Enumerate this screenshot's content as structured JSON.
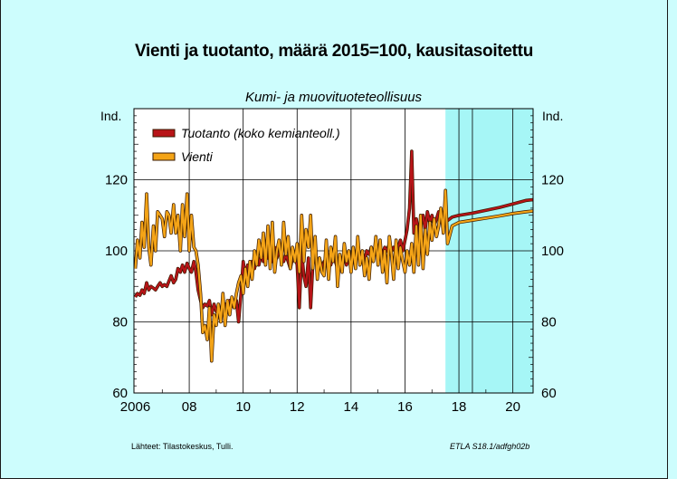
{
  "title": "Vienti ja tuotanto, määrä 2015=100, kausitasoitettu",
  "subtitle": "Kumi- ja muovituoteteollisuus",
  "source": "Lähteet:   Tilastokeskus, Tulli.",
  "code": "ETLA S18.1/adfgh02b",
  "colors": {
    "background": "#cdfdfd",
    "plot_area": "#ffffff",
    "forecast_shade": "#a6f6f6",
    "tuotanto": "#b81418",
    "vienti": "#f4a417"
  },
  "chart_data": {
    "type": "line",
    "title": "Vienti ja tuotanto, määrä 2015=100, kausitasoitettu",
    "subtitle": "Kumi- ja muovituoteteollisuus",
    "ylabel_left": "Ind.",
    "ylabel_right": "Ind.",
    "ylim": [
      60,
      140
    ],
    "xlim": [
      2005.95,
      2020.75
    ],
    "y_ticks": [
      60,
      80,
      100,
      120
    ],
    "x_ticks": [
      {
        "value": 2006,
        "label": "2006"
      },
      {
        "value": 2008,
        "label": "08"
      },
      {
        "value": 2010,
        "label": "10"
      },
      {
        "value": 2012,
        "label": "12"
      },
      {
        "value": 2014,
        "label": "14"
      },
      {
        "value": 2016,
        "label": "16"
      },
      {
        "value": 2018,
        "label": "18"
      },
      {
        "value": 2020,
        "label": "20"
      }
    ],
    "grid": true,
    "legend_position": "top-left",
    "forecast_start": 2017.5,
    "forecast_divider": 2018.5,
    "series": [
      {
        "name": "Tuotanto (koko kemianteoll.)",
        "color": "#b81418",
        "points": [
          [
            2006.0,
            87
          ],
          [
            2006.08,
            88
          ],
          [
            2006.17,
            87.5
          ],
          [
            2006.25,
            89
          ],
          [
            2006.33,
            88
          ],
          [
            2006.42,
            91
          ],
          [
            2006.5,
            89
          ],
          [
            2006.58,
            90
          ],
          [
            2006.67,
            89.5
          ],
          [
            2006.75,
            89
          ],
          [
            2006.83,
            90
          ],
          [
            2006.92,
            91
          ],
          [
            2007.0,
            90
          ],
          [
            2007.08,
            90.5
          ],
          [
            2007.17,
            90
          ],
          [
            2007.25,
            91.5
          ],
          [
            2007.33,
            93
          ],
          [
            2007.42,
            91
          ],
          [
            2007.5,
            92
          ],
          [
            2007.58,
            95
          ],
          [
            2007.67,
            94
          ],
          [
            2007.75,
            96
          ],
          [
            2007.83,
            94
          ],
          [
            2007.92,
            96.5
          ],
          [
            2008.0,
            95
          ],
          [
            2008.08,
            94
          ],
          [
            2008.17,
            97
          ],
          [
            2008.25,
            94
          ],
          [
            2008.33,
            89
          ],
          [
            2008.42,
            86
          ],
          [
            2008.5,
            84
          ],
          [
            2008.58,
            85
          ],
          [
            2008.67,
            84.5
          ],
          [
            2008.75,
            86
          ],
          [
            2008.83,
            82
          ],
          [
            2008.92,
            85
          ],
          [
            2009.0,
            83
          ],
          [
            2009.08,
            82
          ],
          [
            2009.17,
            84
          ],
          [
            2009.25,
            83
          ],
          [
            2009.33,
            85
          ],
          [
            2009.42,
            84
          ],
          [
            2009.5,
            86
          ],
          [
            2009.58,
            85
          ],
          [
            2009.67,
            84
          ],
          [
            2009.75,
            86
          ],
          [
            2009.83,
            80
          ],
          [
            2009.92,
            88
          ],
          [
            2010.0,
            97
          ],
          [
            2010.08,
            93
          ],
          [
            2010.17,
            96
          ],
          [
            2010.25,
            94
          ],
          [
            2010.33,
            97
          ],
          [
            2010.42,
            95
          ],
          [
            2010.5,
            98
          ],
          [
            2010.58,
            96
          ],
          [
            2010.67,
            99
          ],
          [
            2010.75,
            97
          ],
          [
            2010.83,
            100
          ],
          [
            2010.92,
            98
          ],
          [
            2011.0,
            99
          ],
          [
            2011.08,
            97
          ],
          [
            2011.17,
            101
          ],
          [
            2011.25,
            98
          ],
          [
            2011.33,
            100
          ],
          [
            2011.42,
            98
          ],
          [
            2011.5,
            97
          ],
          [
            2011.58,
            99
          ],
          [
            2011.67,
            97
          ],
          [
            2011.75,
            95
          ],
          [
            2011.83,
            98
          ],
          [
            2011.92,
            99
          ],
          [
            2012.0,
            96
          ],
          [
            2012.08,
            84
          ],
          [
            2012.17,
            100
          ],
          [
            2012.25,
            93
          ],
          [
            2012.33,
            90
          ],
          [
            2012.42,
            98
          ],
          [
            2012.5,
            84
          ],
          [
            2012.58,
            96
          ],
          [
            2012.67,
            100
          ],
          [
            2012.75,
            96
          ],
          [
            2012.83,
            98
          ],
          [
            2012.92,
            95
          ],
          [
            2013.0,
            97
          ],
          [
            2013.08,
            96
          ],
          [
            2013.17,
            98
          ],
          [
            2013.25,
            96
          ],
          [
            2013.33,
            99
          ],
          [
            2013.42,
            97
          ],
          [
            2013.5,
            95
          ],
          [
            2013.58,
            98
          ],
          [
            2013.67,
            97
          ],
          [
            2013.75,
            99
          ],
          [
            2013.83,
            96
          ],
          [
            2013.92,
            98
          ],
          [
            2014.0,
            97
          ],
          [
            2014.08,
            99
          ],
          [
            2014.17,
            97
          ],
          [
            2014.25,
            100
          ],
          [
            2014.33,
            98
          ],
          [
            2014.42,
            99
          ],
          [
            2014.5,
            97
          ],
          [
            2014.58,
            100
          ],
          [
            2014.67,
            99
          ],
          [
            2014.75,
            101
          ],
          [
            2014.83,
            99
          ],
          [
            2014.92,
            100
          ],
          [
            2015.0,
            98
          ],
          [
            2015.08,
            100
          ],
          [
            2015.17,
            99
          ],
          [
            2015.25,
            101
          ],
          [
            2015.33,
            100
          ],
          [
            2015.42,
            102
          ],
          [
            2015.5,
            100
          ],
          [
            2015.58,
            101
          ],
          [
            2015.67,
            99
          ],
          [
            2015.75,
            101
          ],
          [
            2015.83,
            103
          ],
          [
            2015.92,
            100
          ],
          [
            2016.0,
            103
          ],
          [
            2016.08,
            106
          ],
          [
            2016.17,
            112
          ],
          [
            2016.25,
            128
          ],
          [
            2016.33,
            105
          ],
          [
            2016.42,
            109
          ],
          [
            2016.5,
            105
          ],
          [
            2016.58,
            107
          ],
          [
            2016.67,
            110
          ],
          [
            2016.75,
            106
          ],
          [
            2016.83,
            111
          ],
          [
            2016.92,
            108
          ],
          [
            2017.0,
            110
          ],
          [
            2017.08,
            107
          ],
          [
            2017.17,
            109
          ],
          [
            2017.25,
            111
          ],
          [
            2017.33,
            108
          ],
          [
            2017.42,
            110
          ],
          [
            2017.5,
            109
          ],
          [
            2017.58,
            108.5
          ],
          [
            2017.75,
            109.5
          ],
          [
            2018.0,
            110
          ],
          [
            2018.5,
            110.6
          ],
          [
            2019.0,
            111.4
          ],
          [
            2019.5,
            112.2
          ],
          [
            2020.0,
            113.2
          ],
          [
            2020.5,
            114.2
          ],
          [
            2020.75,
            114.4
          ]
        ]
      },
      {
        "name": "Vienti",
        "color": "#f4a417",
        "points": [
          [
            2006.0,
            95
          ],
          [
            2006.08,
            103
          ],
          [
            2006.17,
            98
          ],
          [
            2006.25,
            108
          ],
          [
            2006.33,
            101
          ],
          [
            2006.42,
            116
          ],
          [
            2006.5,
            101
          ],
          [
            2006.58,
            96
          ],
          [
            2006.67,
            107
          ],
          [
            2006.75,
            100
          ],
          [
            2006.83,
            111
          ],
          [
            2006.92,
            110
          ],
          [
            2007.0,
            109
          ],
          [
            2007.08,
            104
          ],
          [
            2007.17,
            111
          ],
          [
            2007.25,
            110
          ],
          [
            2007.33,
            105
          ],
          [
            2007.42,
            113
          ],
          [
            2007.5,
            105
          ],
          [
            2007.58,
            110
          ],
          [
            2007.67,
            100
          ],
          [
            2007.75,
            113
          ],
          [
            2007.83,
            104
          ],
          [
            2007.92,
            116
          ],
          [
            2008.0,
            100
          ],
          [
            2008.08,
            110
          ],
          [
            2008.17,
            101
          ],
          [
            2008.25,
            100
          ],
          [
            2008.33,
            96
          ],
          [
            2008.42,
            88
          ],
          [
            2008.5,
            77
          ],
          [
            2008.58,
            79
          ],
          [
            2008.67,
            75
          ],
          [
            2008.75,
            84
          ],
          [
            2008.83,
            69
          ],
          [
            2008.92,
            82
          ],
          [
            2009.0,
            79
          ],
          [
            2009.08,
            85
          ],
          [
            2009.17,
            80
          ],
          [
            2009.25,
            88
          ],
          [
            2009.33,
            79
          ],
          [
            2009.42,
            86
          ],
          [
            2009.5,
            82
          ],
          [
            2009.58,
            87
          ],
          [
            2009.67,
            84
          ],
          [
            2009.75,
            88
          ],
          [
            2009.83,
            91
          ],
          [
            2009.92,
            93
          ],
          [
            2010.0,
            88
          ],
          [
            2010.08,
            95
          ],
          [
            2010.17,
            90
          ],
          [
            2010.25,
            97
          ],
          [
            2010.33,
            92
          ],
          [
            2010.42,
            100
          ],
          [
            2010.5,
            96
          ],
          [
            2010.58,
            103
          ],
          [
            2010.67,
            98
          ],
          [
            2010.75,
            105
          ],
          [
            2010.83,
            96
          ],
          [
            2010.92,
            107
          ],
          [
            2011.0,
            95
          ],
          [
            2011.08,
            108
          ],
          [
            2011.17,
            94
          ],
          [
            2011.25,
            100
          ],
          [
            2011.33,
            103
          ],
          [
            2011.42,
            96
          ],
          [
            2011.5,
            108
          ],
          [
            2011.58,
            99
          ],
          [
            2011.67,
            104
          ],
          [
            2011.75,
            95
          ],
          [
            2011.83,
            101
          ],
          [
            2011.92,
            97
          ],
          [
            2012.0,
            102
          ],
          [
            2012.08,
            94
          ],
          [
            2012.17,
            110
          ],
          [
            2012.25,
            97
          ],
          [
            2012.33,
            106
          ],
          [
            2012.42,
            101
          ],
          [
            2012.5,
            110
          ],
          [
            2012.58,
            95
          ],
          [
            2012.67,
            104
          ],
          [
            2012.75,
            92
          ],
          [
            2012.83,
            98
          ],
          [
            2012.92,
            94
          ],
          [
            2013.0,
            93
          ],
          [
            2013.08,
            103
          ],
          [
            2013.17,
            92
          ],
          [
            2013.25,
            101
          ],
          [
            2013.33,
            97
          ],
          [
            2013.42,
            104
          ],
          [
            2013.5,
            90
          ],
          [
            2013.58,
            99
          ],
          [
            2013.67,
            94
          ],
          [
            2013.75,
            102
          ],
          [
            2013.83,
            97
          ],
          [
            2013.92,
            100
          ],
          [
            2014.0,
            94
          ],
          [
            2014.08,
            101
          ],
          [
            2014.17,
            95
          ],
          [
            2014.25,
            104
          ],
          [
            2014.33,
            96
          ],
          [
            2014.42,
            100
          ],
          [
            2014.5,
            93
          ],
          [
            2014.58,
            98
          ],
          [
            2014.67,
            92
          ],
          [
            2014.75,
            101
          ],
          [
            2014.83,
            97
          ],
          [
            2014.92,
            104
          ],
          [
            2015.0,
            96
          ],
          [
            2015.08,
            103
          ],
          [
            2015.17,
            94
          ],
          [
            2015.25,
            100
          ],
          [
            2015.33,
            91
          ],
          [
            2015.42,
            104
          ],
          [
            2015.5,
            99
          ],
          [
            2015.58,
            92
          ],
          [
            2015.67,
            103
          ],
          [
            2015.75,
            95
          ],
          [
            2015.83,
            101
          ],
          [
            2015.92,
            97
          ],
          [
            2016.0,
            94
          ],
          [
            2016.08,
            100
          ],
          [
            2016.17,
            96
          ],
          [
            2016.25,
            102
          ],
          [
            2016.33,
            94
          ],
          [
            2016.42,
            107
          ],
          [
            2016.5,
            96
          ],
          [
            2016.58,
            110
          ],
          [
            2016.67,
            95
          ],
          [
            2016.75,
            106
          ],
          [
            2016.83,
            99
          ],
          [
            2016.92,
            108
          ],
          [
            2017.0,
            103
          ],
          [
            2017.08,
            109
          ],
          [
            2017.17,
            104
          ],
          [
            2017.25,
            107
          ],
          [
            2017.33,
            112
          ],
          [
            2017.42,
            105
          ],
          [
            2017.5,
            117
          ],
          [
            2017.58,
            102
          ],
          [
            2017.75,
            107
          ],
          [
            2018.0,
            108
          ],
          [
            2018.5,
            108.6
          ],
          [
            2019.0,
            109.2
          ],
          [
            2019.5,
            109.8
          ],
          [
            2020.0,
            110.5
          ],
          [
            2020.5,
            111
          ],
          [
            2020.75,
            111.2
          ]
        ]
      }
    ]
  }
}
